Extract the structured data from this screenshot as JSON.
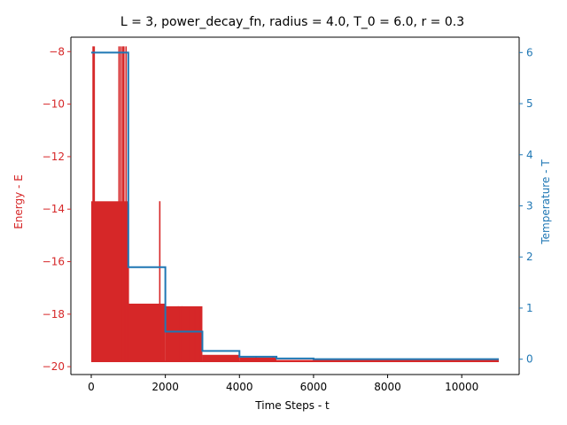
{
  "chart_data": {
    "type": "line",
    "title": "L = 3, power_decay_fn, radius = 4.0, T_0 = 6.0, r = 0.3",
    "xlabel": "Time Steps - t",
    "ylabel_left": "Energy - E",
    "ylabel_right": "Temperature - T",
    "xlim": [
      -550,
      11550
    ],
    "ylim_left": [
      -20.3,
      -7.45
    ],
    "ylim_right": [
      -0.3,
      6.3
    ],
    "x_ticks": [
      0,
      2000,
      4000,
      6000,
      8000,
      10000
    ],
    "x_tick_labels": [
      "0",
      "2000",
      "4000",
      "6000",
      "8000",
      "10000"
    ],
    "y_left_ticks": [
      -8,
      -10,
      -12,
      -14,
      -16,
      -18,
      -20
    ],
    "y_left_tick_labels": [
      "−8",
      "−10",
      "−12",
      "−14",
      "−16",
      "−18",
      "−20"
    ],
    "y_right_ticks": [
      0,
      1,
      2,
      3,
      4,
      5,
      6
    ],
    "y_right_tick_labels": [
      "0",
      "1",
      "2",
      "3",
      "4",
      "5",
      "6"
    ],
    "grid": false,
    "colors": {
      "energy": "#d62728",
      "temperature": "#1f77b4",
      "axes": "#000000"
    },
    "energy_envelope": [
      {
        "x_start": 0,
        "x_end": 1000,
        "low": -19.8,
        "high": -13.7
      },
      {
        "x_start": 1000,
        "x_end": 2000,
        "low": -19.8,
        "high": -17.6
      },
      {
        "x_start": 2000,
        "x_end": 3000,
        "low": -19.8,
        "high": -17.7
      },
      {
        "x_start": 3000,
        "x_end": 4000,
        "low": -19.8,
        "high": -19.55
      },
      {
        "x_start": 4000,
        "x_end": 5000,
        "low": -19.8,
        "high": -19.65
      },
      {
        "x_start": 5000,
        "x_end": 6000,
        "low": -19.8,
        "high": -19.78
      },
      {
        "x_start": 6000,
        "x_end": 11000,
        "low": -19.8,
        "high": -19.8
      }
    ],
    "energy_spikes": [
      {
        "x": 50,
        "y": -7.8
      },
      {
        "x": 80,
        "y": -7.8
      },
      {
        "x": 750,
        "y": -7.8
      },
      {
        "x": 800,
        "y": -7.8
      },
      {
        "x": 850,
        "y": -7.8
      },
      {
        "x": 880,
        "y": -7.8
      },
      {
        "x": 940,
        "y": -7.8
      },
      {
        "x": 1000,
        "y": -13.8
      },
      {
        "x": 1850,
        "y": -13.7
      },
      {
        "x": 2350,
        "y": -17.7
      },
      {
        "x": 2450,
        "y": -17.7
      },
      {
        "x": 2650,
        "y": -17.8
      },
      {
        "x": 2800,
        "y": -17.8
      },
      {
        "x": 2950,
        "y": -17.8
      },
      {
        "x": 4450,
        "y": -19.6
      },
      {
        "x": 4900,
        "y": -19.6
      }
    ],
    "temperature_steps": [
      {
        "x_start": 0,
        "x_end": 1000,
        "T": 6.0
      },
      {
        "x_start": 1000,
        "x_end": 2000,
        "T": 1.8
      },
      {
        "x_start": 2000,
        "x_end": 3000,
        "T": 0.54
      },
      {
        "x_start": 3000,
        "x_end": 4000,
        "T": 0.162
      },
      {
        "x_start": 4000,
        "x_end": 5000,
        "T": 0.0486
      },
      {
        "x_start": 5000,
        "x_end": 6000,
        "T": 0.01458
      },
      {
        "x_start": 6000,
        "x_end": 11000,
        "T": 0.0
      }
    ]
  }
}
